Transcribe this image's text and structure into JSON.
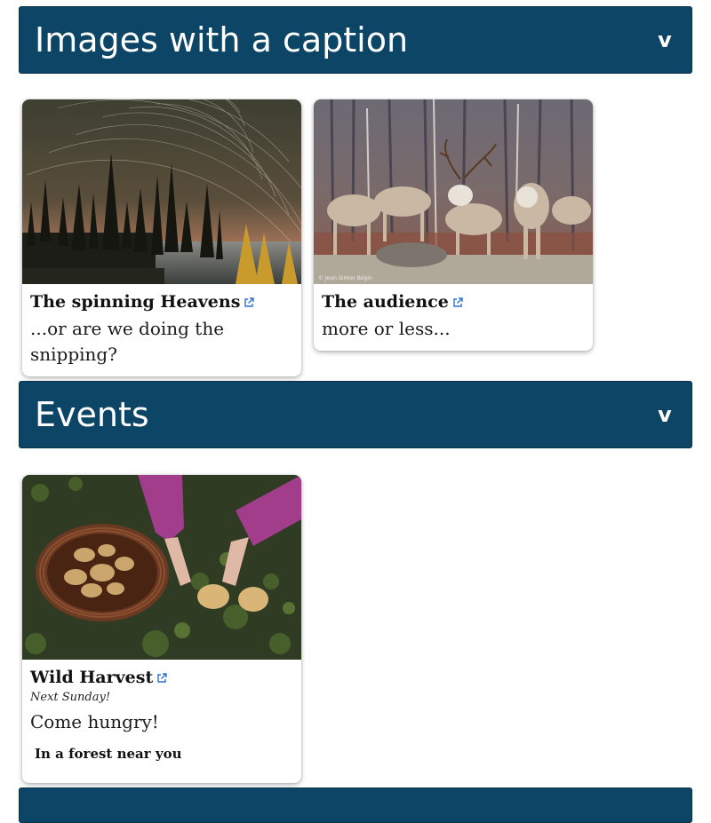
{
  "sections": [
    {
      "title": "Images with a caption",
      "toggle_glyph": "v"
    },
    {
      "title": "Events",
      "toggle_glyph": "v"
    }
  ],
  "caption_cards": [
    {
      "title": "The spinning Heavens",
      "description": "...or are we doing the snipping?",
      "image": "night sky star trails over forest and lake"
    },
    {
      "title": "The audience",
      "description": "more or less...",
      "image": "caribou herd in burned forest",
      "image_credit": "© Jean-Simon Bégin"
    }
  ],
  "event_cards": [
    {
      "title": "Wild Harvest",
      "date": "Next Sunday!",
      "description": "Come hungry!",
      "location": "In a forest near you",
      "image": "hands picking mushrooms into a basket"
    }
  ],
  "colors": {
    "header_bg": "#0c4566",
    "header_text": "#ffffff",
    "link_icon": "#2b6fd6"
  },
  "icons": {
    "toggle": "chevron-down-icon",
    "external": "external-link-icon"
  }
}
